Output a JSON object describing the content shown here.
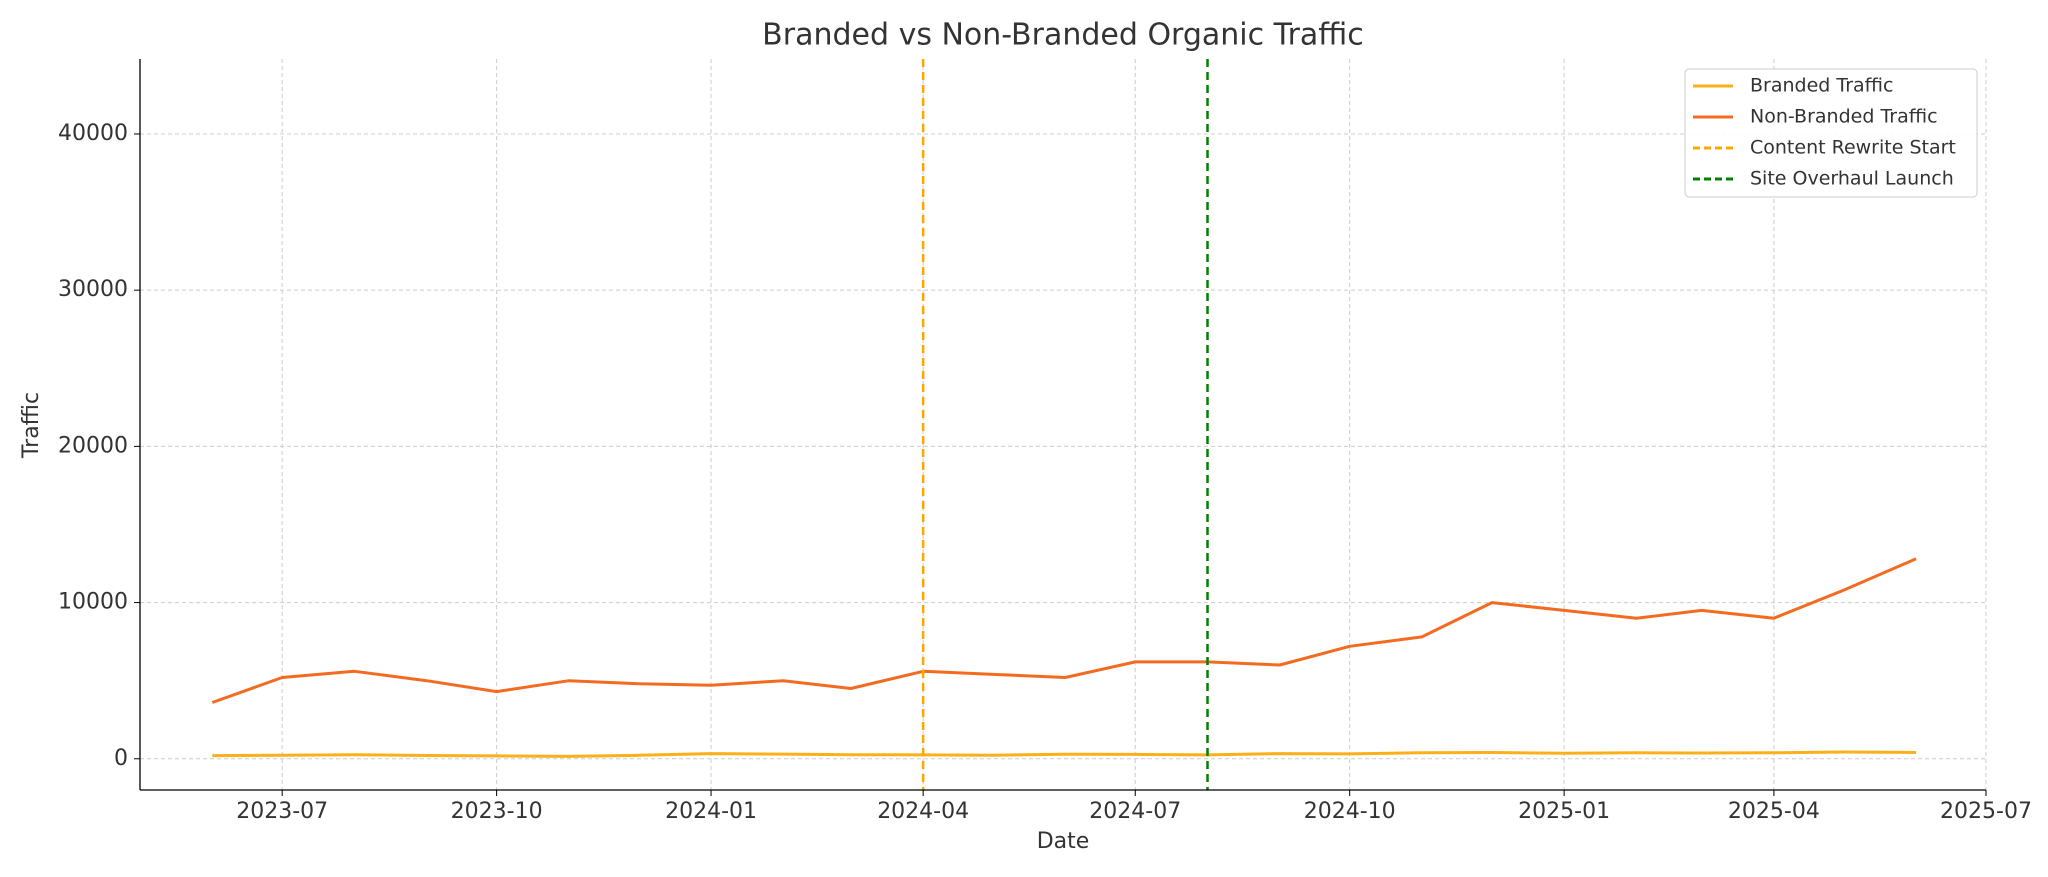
{
  "chart_data": {
    "type": "line",
    "title": "Branded vs Non-Branded Organic Traffic",
    "x_label": "Date",
    "y_label": "Traffic",
    "x": [
      "2023-06",
      "2023-07",
      "2023-08",
      "2023-09",
      "2023-10",
      "2023-11",
      "2023-12",
      "2024-01",
      "2024-02",
      "2024-03",
      "2024-04",
      "2024-05",
      "2024-06",
      "2024-07",
      "2024-08",
      "2024-09",
      "2024-10",
      "2024-11",
      "2024-12",
      "2025-01",
      "2025-02",
      "2025-03",
      "2025-04",
      "2025-05",
      "2025-06"
    ],
    "series": [
      {
        "name": "Branded Traffic",
        "color": "#fbb01a",
        "values": [
          200,
          230,
          260,
          210,
          180,
          150,
          220,
          330,
          300,
          260,
          250,
          230,
          290,
          280,
          250,
          330,
          310,
          380,
          400,
          350,
          380,
          370,
          380,
          430,
          400
        ]
      },
      {
        "name": "Non-Branded Traffic",
        "color": "#f26b21",
        "values": [
          3600,
          5200,
          5600,
          5000,
          4300,
          5000,
          4800,
          4700,
          5000,
          4500,
          5600,
          5400,
          5200,
          6200,
          6200,
          6000,
          7200,
          7800,
          10000,
          9500,
          9000,
          9500,
          9000,
          10800,
          12800
        ]
      }
    ],
    "annotations": [
      {
        "x": "2024-04",
        "label": "Content Rewrite Start",
        "color": "#ffa500"
      },
      {
        "x": "2024-08",
        "label": "Site Overhaul Launch",
        "color": "#008000"
      }
    ],
    "xlim": [
      "2023-05",
      "2025-07"
    ],
    "xticks": [
      "2023-07",
      "2023-10",
      "2024-01",
      "2024-04",
      "2024-07",
      "2024-10",
      "2025-01",
      "2025-04",
      "2025-07"
    ],
    "ylim": [
      -2000,
      44800
    ],
    "yticks": [
      0,
      10000,
      20000,
      30000,
      40000
    ],
    "grid": true,
    "legend": "upper right"
  }
}
